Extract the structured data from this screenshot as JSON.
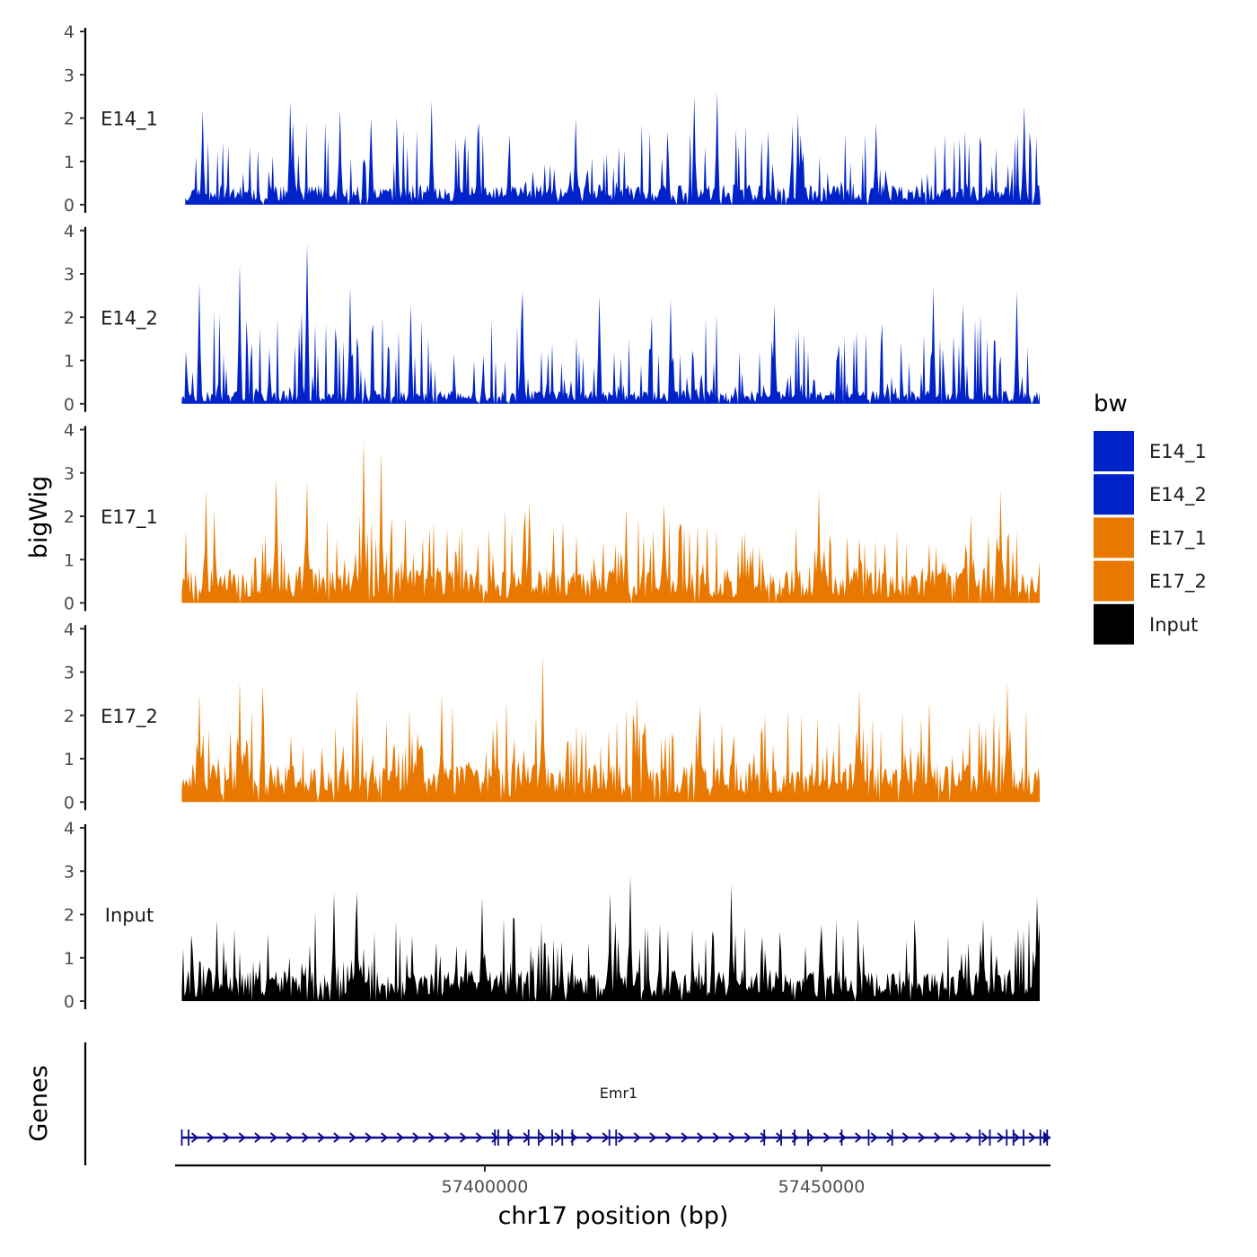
{
  "chart_data": {
    "type": "area",
    "chromosome": "chr17",
    "xlabel": "chr17 position (bp)",
    "ylabel": "bigWig",
    "genes_label": "Genes",
    "xlim": [
      57354000,
      57484000
    ],
    "x_ticks": [
      57400000,
      57450000
    ],
    "x_tick_labels": [
      "57400000",
      "57450000"
    ],
    "y_ticks": [
      0,
      1,
      2,
      3,
      4
    ],
    "ylim": [
      0,
      4
    ],
    "signal_range": [
      57355500,
      57482500
    ],
    "legend": {
      "title": "bw",
      "position": "right",
      "entries": [
        {
          "label": "E14_1",
          "color": "#0022c9"
        },
        {
          "label": "E14_2",
          "color": "#0022c9"
        },
        {
          "label": "E17_1",
          "color": "#e87800"
        },
        {
          "label": "E17_2",
          "color": "#e87800"
        },
        {
          "label": "Input",
          "color": "#000000"
        }
      ]
    },
    "tracks": [
      {
        "name": "E14_1",
        "color": "#0022c9",
        "seed": 11,
        "baseline": 0.45,
        "spike_prob": 0.2,
        "spike_max": 1.6,
        "start": 57355500,
        "peaks": [
          {
            "x": 57358000,
            "y": 2.2
          },
          {
            "x": 57371000,
            "y": 2.4
          },
          {
            "x": 57378500,
            "y": 2.2
          },
          {
            "x": 57383000,
            "y": 2.0
          },
          {
            "x": 57392000,
            "y": 2.4
          },
          {
            "x": 57399000,
            "y": 1.9
          },
          {
            "x": 57413500,
            "y": 2.0
          },
          {
            "x": 57431000,
            "y": 2.5
          },
          {
            "x": 57434500,
            "y": 2.6
          },
          {
            "x": 57446500,
            "y": 2.1
          },
          {
            "x": 57458000,
            "y": 1.9
          },
          {
            "x": 57480000,
            "y": 2.3
          }
        ]
      },
      {
        "name": "E14_2",
        "color": "#0022c9",
        "seed": 23,
        "baseline": 0.3,
        "spike_prob": 0.26,
        "spike_max": 1.9,
        "start": 57355000,
        "peaks": [
          {
            "x": 57357500,
            "y": 2.8
          },
          {
            "x": 57363500,
            "y": 3.2
          },
          {
            "x": 57373500,
            "y": 3.7
          },
          {
            "x": 57380000,
            "y": 2.7
          },
          {
            "x": 57389000,
            "y": 2.3
          },
          {
            "x": 57405500,
            "y": 2.6
          },
          {
            "x": 57417000,
            "y": 2.5
          },
          {
            "x": 57427500,
            "y": 2.4
          },
          {
            "x": 57443000,
            "y": 2.3
          },
          {
            "x": 57466500,
            "y": 2.7
          },
          {
            "x": 57471000,
            "y": 2.3
          },
          {
            "x": 57479000,
            "y": 2.6
          }
        ]
      },
      {
        "name": "E17_1",
        "color": "#e87800",
        "seed": 37,
        "baseline": 0.8,
        "spike_prob": 0.26,
        "spike_max": 1.5,
        "start": 57355000,
        "peaks": [
          {
            "x": 57358500,
            "y": 2.6
          },
          {
            "x": 57369000,
            "y": 2.9
          },
          {
            "x": 57373500,
            "y": 2.8
          },
          {
            "x": 57382000,
            "y": 3.8
          },
          {
            "x": 57384500,
            "y": 3.5
          },
          {
            "x": 57406500,
            "y": 2.3
          },
          {
            "x": 57421000,
            "y": 2.2
          },
          {
            "x": 57426500,
            "y": 2.3
          },
          {
            "x": 57449500,
            "y": 2.6
          },
          {
            "x": 57476500,
            "y": 2.6
          }
        ]
      },
      {
        "name": "E17_2",
        "color": "#e87800",
        "seed": 51,
        "baseline": 0.85,
        "spike_prob": 0.28,
        "spike_max": 1.5,
        "start": 57355000,
        "peaks": [
          {
            "x": 57357500,
            "y": 2.5
          },
          {
            "x": 57363500,
            "y": 2.8
          },
          {
            "x": 57367000,
            "y": 2.7
          },
          {
            "x": 57381000,
            "y": 2.6
          },
          {
            "x": 57393500,
            "y": 2.5
          },
          {
            "x": 57408500,
            "y": 3.4
          },
          {
            "x": 57422500,
            "y": 2.4
          },
          {
            "x": 57432000,
            "y": 2.2
          },
          {
            "x": 57455500,
            "y": 2.6
          },
          {
            "x": 57466000,
            "y": 2.3
          },
          {
            "x": 57477500,
            "y": 2.8
          }
        ]
      },
      {
        "name": "Input",
        "color": "#000000",
        "seed": 67,
        "baseline": 0.7,
        "spike_prob": 0.2,
        "spike_max": 1.4,
        "start": 57355000,
        "peaks": [
          {
            "x": 57377500,
            "y": 2.5
          },
          {
            "x": 57381000,
            "y": 2.5
          },
          {
            "x": 57399500,
            "y": 2.4
          },
          {
            "x": 57418500,
            "y": 2.5
          },
          {
            "x": 57421500,
            "y": 2.9
          },
          {
            "x": 57436500,
            "y": 2.7
          },
          {
            "x": 57474000,
            "y": 1.9
          },
          {
            "x": 57482000,
            "y": 2.4
          }
        ]
      }
    ],
    "gene": {
      "name": "Emr1",
      "strand": "+",
      "color": "#0a0a8c",
      "start": 57355000,
      "end": 57484000,
      "exons": [
        57355000,
        57356000,
        57401500,
        57402000,
        57403500,
        57406500,
        57408000,
        57410000,
        57411500,
        57413000,
        57418500,
        57419500,
        57441500,
        57444000,
        57446000,
        57448000,
        57453000,
        57457000,
        57460500,
        57473500,
        57475000,
        57477500,
        57478500,
        57480000,
        57482500,
        57483500
      ]
    }
  }
}
